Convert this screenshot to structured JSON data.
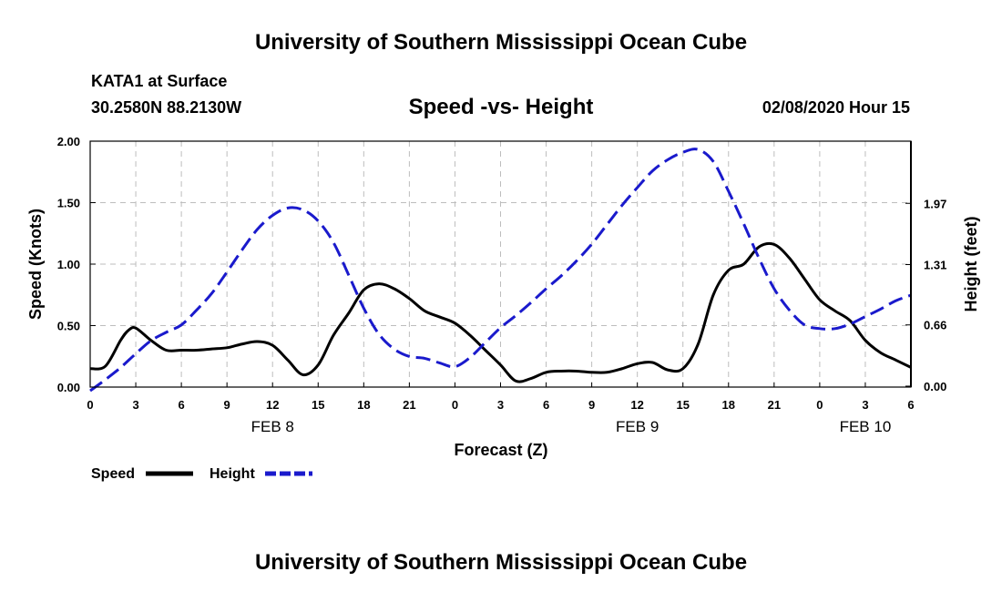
{
  "header": {
    "title": "University of Southern Mississippi Ocean Cube",
    "station": "KATA1 at Surface",
    "coords": "30.2580N 88.2130W",
    "chart_title": "Speed -vs- Height",
    "timestamp": "02/08/2020 Hour 15"
  },
  "footer": {
    "title": "University of Southern Mississippi Ocean Cube"
  },
  "colors": {
    "speed": "#000000",
    "height": "#1a1acc"
  },
  "chart_data": {
    "type": "line",
    "title": "Speed -vs- Height",
    "xlabel": "Forecast (Z)",
    "ylabel": "Speed (Knots)",
    "y2label": "Height (feet)",
    "x_range": [
      0,
      54
    ],
    "ylim": [
      0,
      2.0
    ],
    "y2lim": [
      -0.01,
      2.64
    ],
    "x_ticks": [
      0,
      3,
      6,
      9,
      12,
      15,
      18,
      21,
      24,
      27,
      30,
      33,
      36,
      39,
      42,
      45,
      48,
      51,
      54
    ],
    "x_tick_labels": [
      "0",
      "3",
      "6",
      "9",
      "12",
      "15",
      "18",
      "21",
      "0",
      "3",
      "6",
      "9",
      "12",
      "15",
      "18",
      "21",
      "0",
      "3",
      "6"
    ],
    "y_ticks": [
      0,
      0.5,
      1.0,
      1.5,
      2.0
    ],
    "y_tick_labels": [
      "0.00",
      "0.50",
      "1.00",
      "1.50",
      "2.00"
    ],
    "y2_ticks": [
      0,
      0.66,
      1.31,
      1.97
    ],
    "y2_tick_labels": [
      "0.00",
      "0.66",
      "1.31",
      "1.97"
    ],
    "date_labels": [
      {
        "x": 12,
        "label": "FEB 8"
      },
      {
        "x": 36,
        "label": "FEB 9"
      },
      {
        "x": 51,
        "label": "FEB 10"
      }
    ],
    "series": [
      {
        "name": "Speed",
        "axis": "left",
        "style": "solid",
        "x": [
          0,
          1,
          2,
          2.5,
          3,
          4,
          5,
          6,
          7,
          8,
          9,
          10,
          11,
          12,
          13,
          14,
          15,
          16,
          17,
          18,
          19,
          20,
          21,
          22,
          23,
          24,
          25,
          26,
          27,
          28,
          29,
          30,
          31,
          32,
          33,
          34,
          35,
          36,
          37,
          38,
          39,
          40,
          41,
          42,
          43,
          44,
          45,
          46,
          47,
          48,
          49,
          50,
          51,
          52,
          53,
          54
        ],
        "values": [
          0.15,
          0.17,
          0.38,
          0.46,
          0.48,
          0.38,
          0.3,
          0.3,
          0.3,
          0.31,
          0.32,
          0.35,
          0.37,
          0.34,
          0.22,
          0.1,
          0.18,
          0.42,
          0.6,
          0.79,
          0.84,
          0.8,
          0.72,
          0.62,
          0.57,
          0.52,
          0.42,
          0.3,
          0.18,
          0.05,
          0.07,
          0.12,
          0.13,
          0.13,
          0.12,
          0.12,
          0.15,
          0.19,
          0.2,
          0.14,
          0.15,
          0.35,
          0.75,
          0.95,
          1.0,
          1.14,
          1.16,
          1.05,
          0.88,
          0.71,
          0.62,
          0.54,
          0.38,
          0.28,
          0.22,
          0.16
        ]
      },
      {
        "name": "Height",
        "axis": "right",
        "style": "dashed",
        "x": [
          0,
          1,
          2,
          3,
          4,
          5,
          6,
          7,
          8,
          9,
          10,
          11,
          12,
          13,
          14,
          15,
          16,
          17,
          18,
          19,
          20,
          21,
          22,
          23,
          24,
          25,
          26,
          27,
          28,
          29,
          30,
          31,
          32,
          33,
          34,
          35,
          36,
          37,
          38,
          39,
          40,
          41,
          42,
          43,
          44,
          45,
          46,
          47,
          48,
          49,
          50,
          51,
          52,
          53,
          54
        ],
        "values": [
          -0.05,
          0.07,
          0.2,
          0.35,
          0.49,
          0.58,
          0.66,
          0.82,
          1.0,
          1.23,
          1.47,
          1.69,
          1.84,
          1.92,
          1.9,
          1.78,
          1.55,
          1.2,
          0.84,
          0.56,
          0.4,
          0.32,
          0.3,
          0.25,
          0.21,
          0.31,
          0.47,
          0.63,
          0.76,
          0.9,
          1.05,
          1.19,
          1.35,
          1.53,
          1.74,
          1.95,
          2.14,
          2.32,
          2.44,
          2.52,
          2.55,
          2.42,
          2.1,
          1.75,
          1.38,
          1.05,
          0.82,
          0.66,
          0.62,
          0.62,
          0.67,
          0.75,
          0.83,
          0.92,
          0.98
        ]
      }
    ],
    "legend": [
      {
        "name": "Speed",
        "style": "solid"
      },
      {
        "name": "Height",
        "style": "dashed"
      }
    ]
  }
}
